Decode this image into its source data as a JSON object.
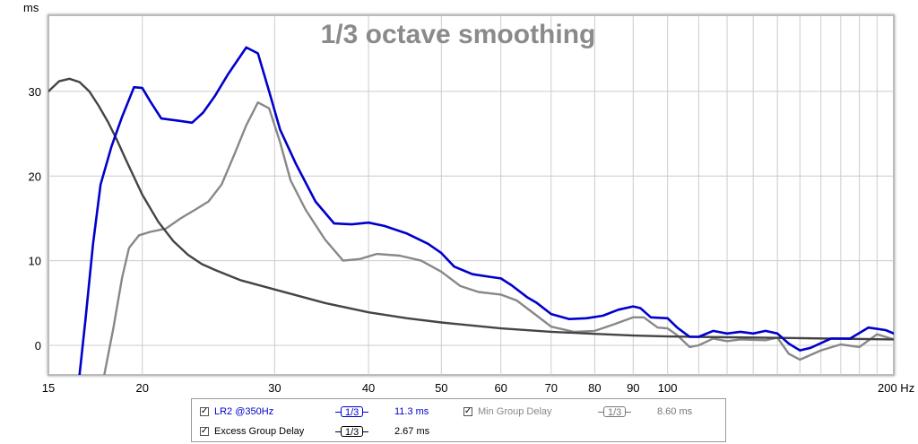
{
  "chart_data": {
    "type": "line",
    "title": "1/3 octave smoothing",
    "y_unit": "ms",
    "x_unit": "Hz",
    "x_scale": "log",
    "xlim": [
      15,
      200
    ],
    "ylim": [
      -3.5,
      39
    ],
    "x_ticks": [
      {
        "value": 15,
        "label": "15"
      },
      {
        "value": 20,
        "label": "20"
      },
      {
        "value": 30,
        "label": "30"
      },
      {
        "value": 40,
        "label": "40"
      },
      {
        "value": 50,
        "label": "50"
      },
      {
        "value": 60,
        "label": "60"
      },
      {
        "value": 70,
        "label": "70"
      },
      {
        "value": 80,
        "label": "80"
      },
      {
        "value": 90,
        "label": "90"
      },
      {
        "value": 100,
        "label": "100"
      },
      {
        "value": 200,
        "label": "200"
      }
    ],
    "x_minor_grid": [
      110,
      120,
      130,
      140,
      150,
      160,
      170,
      180,
      190
    ],
    "y_ticks": [
      0,
      10,
      20,
      30
    ],
    "grid": true,
    "series": [
      {
        "name": "LR2 @350Hz",
        "color": "#0000cc",
        "points": [
          [
            16.5,
            -3.5
          ],
          [
            16.8,
            3
          ],
          [
            17.2,
            12
          ],
          [
            17.6,
            19
          ],
          [
            18.2,
            23.5
          ],
          [
            18.8,
            27
          ],
          [
            19.5,
            30.5
          ],
          [
            20.0,
            30.4
          ],
          [
            20.5,
            28.8
          ],
          [
            21.2,
            26.8
          ],
          [
            22.5,
            26.5
          ],
          [
            23.3,
            26.3
          ],
          [
            24.1,
            27.5
          ],
          [
            25.0,
            29.5
          ],
          [
            26.0,
            32
          ],
          [
            27.5,
            35.2
          ],
          [
            28.5,
            34.5
          ],
          [
            29.5,
            30
          ],
          [
            30.5,
            25.5
          ],
          [
            32.0,
            21.5
          ],
          [
            34.0,
            17
          ],
          [
            36.0,
            14.4
          ],
          [
            38.0,
            14.3
          ],
          [
            40.0,
            14.5
          ],
          [
            42.0,
            14.1
          ],
          [
            45.0,
            13.2
          ],
          [
            48.0,
            12
          ],
          [
            50.0,
            10.9
          ],
          [
            52.0,
            9.3
          ],
          [
            55.0,
            8.4
          ],
          [
            58.0,
            8.1
          ],
          [
            60.0,
            7.9
          ],
          [
            62.0,
            7.1
          ],
          [
            65.0,
            5.7
          ],
          [
            67.0,
            5.0
          ],
          [
            70.0,
            3.7
          ],
          [
            74.0,
            3.1
          ],
          [
            78.0,
            3.2
          ],
          [
            82.0,
            3.5
          ],
          [
            86.0,
            4.2
          ],
          [
            90.0,
            4.6
          ],
          [
            92.0,
            4.4
          ],
          [
            95.0,
            3.3
          ],
          [
            100.0,
            3.2
          ],
          [
            103.0,
            2.1
          ],
          [
            107.0,
            1.0
          ],
          [
            110.0,
            1.0
          ],
          [
            115.0,
            1.7
          ],
          [
            120.0,
            1.4
          ],
          [
            125.0,
            1.6
          ],
          [
            130.0,
            1.4
          ],
          [
            135.0,
            1.7
          ],
          [
            140.0,
            1.4
          ],
          [
            145.0,
            0.2
          ],
          [
            150.0,
            -0.6
          ],
          [
            155.0,
            -0.3
          ],
          [
            165.0,
            0.8
          ],
          [
            175.0,
            0.8
          ],
          [
            185.0,
            2.1
          ],
          [
            195.0,
            1.8
          ],
          [
            200.0,
            1.4
          ]
        ]
      },
      {
        "name": "Min Group Delay",
        "color": "#444444",
        "points": [
          [
            15.0,
            30.0
          ],
          [
            15.5,
            31.2
          ],
          [
            16.0,
            31.5
          ],
          [
            16.5,
            31.1
          ],
          [
            17.0,
            30.0
          ],
          [
            17.5,
            28.3
          ],
          [
            18.0,
            26.4
          ],
          [
            18.5,
            24.3
          ],
          [
            19.0,
            22.0
          ],
          [
            20.0,
            17.8
          ],
          [
            21.0,
            14.6
          ],
          [
            22.0,
            12.3
          ],
          [
            23.0,
            10.7
          ],
          [
            24.0,
            9.6
          ],
          [
            25.0,
            8.9
          ],
          [
            27.0,
            7.7
          ],
          [
            30.0,
            6.6
          ],
          [
            35.0,
            5.0
          ],
          [
            40.0,
            3.9
          ],
          [
            45.0,
            3.2
          ],
          [
            50.0,
            2.7
          ],
          [
            60.0,
            2.0
          ],
          [
            70.0,
            1.6
          ],
          [
            80.0,
            1.35
          ],
          [
            90.0,
            1.15
          ],
          [
            100.0,
            1.05
          ],
          [
            120.0,
            0.95
          ],
          [
            150.0,
            0.85
          ],
          [
            200.0,
            0.7
          ]
        ]
      },
      {
        "name": "Excess Group Delay",
        "color": "#888888",
        "points": [
          [
            17.8,
            -3.5
          ],
          [
            18.3,
            2
          ],
          [
            18.8,
            8
          ],
          [
            19.2,
            11.5
          ],
          [
            19.8,
            13.0
          ],
          [
            20.5,
            13.4
          ],
          [
            21.5,
            13.8
          ],
          [
            22.5,
            15.0
          ],
          [
            23.5,
            16.0
          ],
          [
            24.5,
            17.0
          ],
          [
            25.5,
            19.0
          ],
          [
            26.5,
            22.5
          ],
          [
            27.5,
            26.0
          ],
          [
            28.5,
            28.7
          ],
          [
            29.5,
            28.0
          ],
          [
            30.5,
            24.0
          ],
          [
            31.5,
            19.5
          ],
          [
            33.0,
            16.0
          ],
          [
            35.0,
            12.5
          ],
          [
            37.0,
            10.0
          ],
          [
            39.0,
            10.2
          ],
          [
            41.0,
            10.8
          ],
          [
            44.0,
            10.6
          ],
          [
            47.0,
            10.0
          ],
          [
            50.0,
            8.7
          ],
          [
            53.0,
            7.0
          ],
          [
            56.0,
            6.3
          ],
          [
            60.0,
            6.0
          ],
          [
            63.0,
            5.3
          ],
          [
            67.0,
            3.5
          ],
          [
            70.0,
            2.2
          ],
          [
            75.0,
            1.6
          ],
          [
            80.0,
            1.7
          ],
          [
            85.0,
            2.5
          ],
          [
            90.0,
            3.3
          ],
          [
            93.0,
            3.3
          ],
          [
            97.0,
            2.1
          ],
          [
            100.0,
            2.0
          ],
          [
            103.0,
            1.2
          ],
          [
            107.0,
            -0.2
          ],
          [
            110.0,
            0.0
          ],
          [
            115.0,
            0.8
          ],
          [
            120.0,
            0.5
          ],
          [
            125.0,
            0.7
          ],
          [
            135.0,
            0.6
          ],
          [
            140.0,
            0.9
          ],
          [
            145.0,
            -1.0
          ],
          [
            150.0,
            -1.7
          ],
          [
            160.0,
            -0.6
          ],
          [
            170.0,
            0.1
          ],
          [
            180.0,
            -0.2
          ],
          [
            190.0,
            1.3
          ],
          [
            200.0,
            0.7
          ]
        ]
      }
    ],
    "legend": {
      "placement": "bottom-center",
      "items": [
        {
          "label": "LR2 @350Hz",
          "color": "#0000cc",
          "checked": true,
          "smoothing": "1/3",
          "value": "11.3 ms"
        },
        {
          "label": "Min Group Delay",
          "color": "#888888",
          "checked": true,
          "smoothing": "1/3",
          "value": "8.60 ms"
        },
        {
          "label": "Excess Group Delay",
          "color": "#000000",
          "checked": true,
          "smoothing": "1/3",
          "value": "2.67 ms"
        }
      ]
    }
  }
}
